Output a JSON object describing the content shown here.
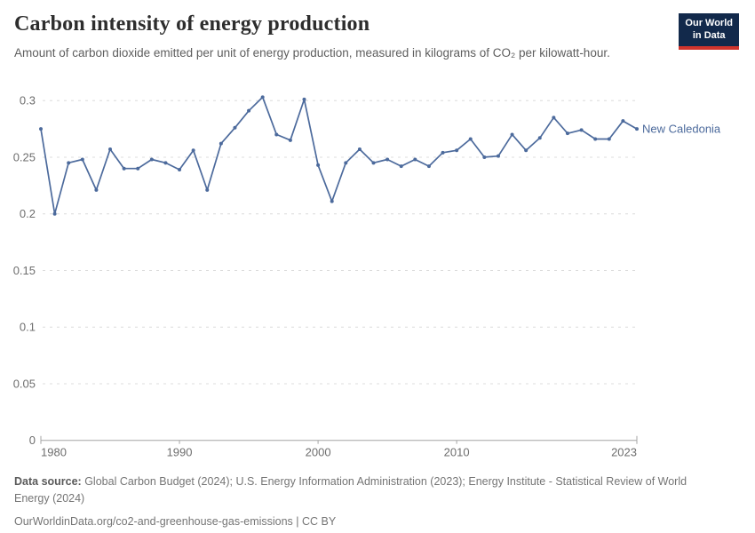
{
  "header": {
    "title": "Carbon intensity of energy production",
    "subtitle": "Amount of carbon dioxide emitted per unit of energy production, measured in kilograms of CO₂ per kilowatt-hour."
  },
  "logo": {
    "line1": "Our World",
    "line2": "in Data",
    "bg_color": "#12294B",
    "bar_color": "#D0342C"
  },
  "chart_data": {
    "type": "line",
    "title": "Carbon intensity of energy production",
    "xlabel": "",
    "ylabel": "kilograms of CO₂ per kilowatt-hour",
    "x": [
      1980,
      1981,
      1982,
      1983,
      1984,
      1985,
      1986,
      1987,
      1988,
      1989,
      1990,
      1991,
      1992,
      1993,
      1994,
      1995,
      1996,
      1997,
      1998,
      1999,
      2000,
      2001,
      2002,
      2003,
      2004,
      2005,
      2006,
      2007,
      2008,
      2009,
      2010,
      2011,
      2012,
      2013,
      2014,
      2015,
      2016,
      2017,
      2018,
      2019,
      2020,
      2021,
      2022,
      2023
    ],
    "series": [
      {
        "name": "New Caledonia",
        "color": "#4C6A9C",
        "values": [
          0.275,
          0.2,
          0.245,
          0.248,
          0.221,
          0.257,
          0.24,
          0.24,
          0.248,
          0.245,
          0.239,
          0.256,
          0.221,
          0.262,
          0.276,
          0.291,
          0.303,
          0.27,
          0.265,
          0.301,
          0.243,
          0.211,
          0.245,
          0.257,
          0.245,
          0.248,
          0.242,
          0.248,
          0.242,
          0.254,
          0.256,
          0.266,
          0.25,
          0.251,
          0.27,
          0.256,
          0.267,
          0.285,
          0.271,
          0.274,
          0.266,
          0.266,
          0.282,
          0.275
        ]
      }
    ],
    "ylim": [
      0,
      0.3
    ],
    "yticks": [
      0,
      0.05,
      0.1,
      0.15,
      0.2,
      0.25,
      0.3
    ],
    "ytick_labels": [
      "0",
      "0.05",
      "0.1",
      "0.15",
      "0.2",
      "0.25",
      "0.3"
    ],
    "xticks": [
      1980,
      1990,
      2000,
      2010,
      2023
    ],
    "xtick_labels": [
      "1980",
      "1990",
      "2000",
      "2010",
      "2023"
    ],
    "grid": "horizontal-dashed",
    "legend": "end-of-line-label"
  },
  "colors": {
    "line": "#4C6A9C",
    "grid": "#dcdcdc",
    "axis": "#a5a5a5",
    "tick_text": "#6e6e6e",
    "title_text": "#2d2d2d",
    "subtitle_text": "#5e5e5e"
  },
  "footer": {
    "source_label": "Data source:",
    "source_text": " Global Carbon Budget (2024); U.S. Energy Information Administration (2023); Energy Institute - Statistical Review of World Energy (2024)",
    "link_text": "OurWorldinData.org/co2-and-greenhouse-gas-emissions | CC BY"
  }
}
